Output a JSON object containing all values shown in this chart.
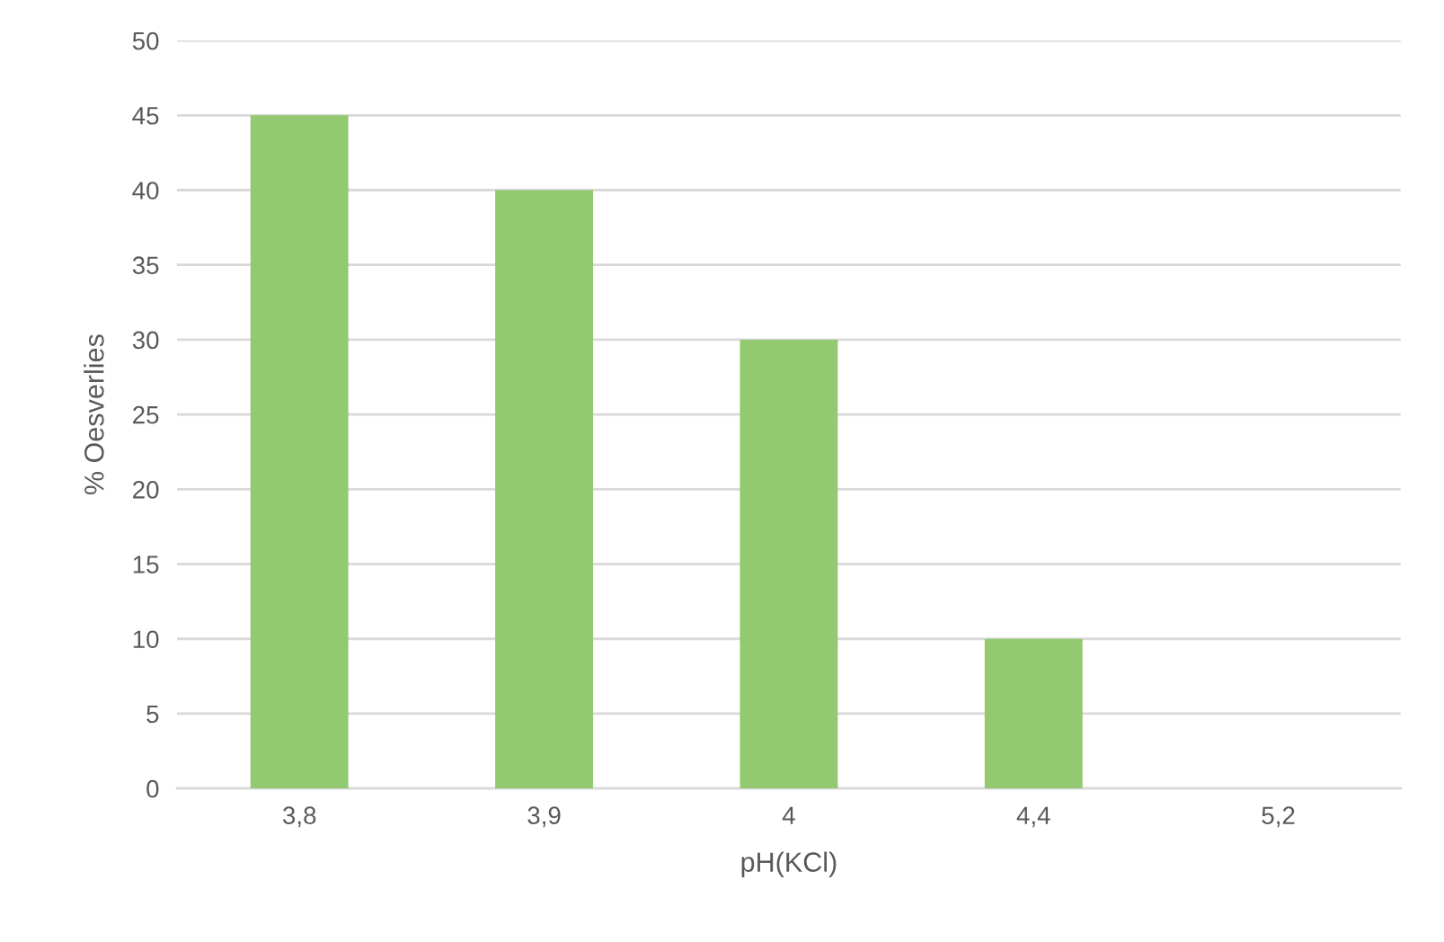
{
  "chart_data": {
    "type": "bar",
    "xlabel": "pH(KCl)",
    "ylabel": "% Oesverlies",
    "categories": [
      "3,8",
      "3,9",
      "4",
      "4,4",
      "5,2"
    ],
    "values": [
      45,
      40,
      30,
      10,
      0
    ],
    "color": "#93ca71",
    "ylim": [
      0,
      50
    ],
    "yticks": [
      0,
      5,
      10,
      15,
      20,
      25,
      30,
      35,
      40,
      45,
      50
    ],
    "grid": "y"
  }
}
